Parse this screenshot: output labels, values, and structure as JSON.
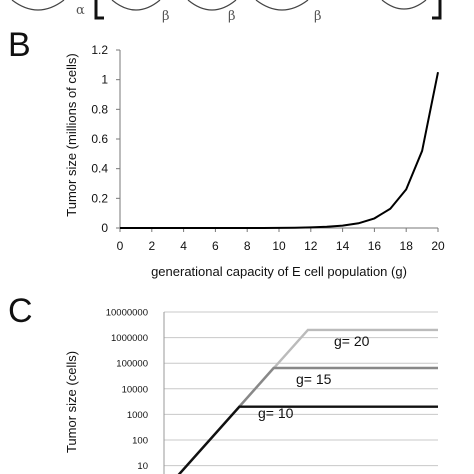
{
  "top_strip": {
    "greek_labels": [
      "α",
      "β",
      "β",
      "β"
    ]
  },
  "panels": {
    "b": {
      "letter": "B"
    },
    "c": {
      "letter": "C"
    }
  },
  "chart_data": [
    {
      "panel": "B",
      "type": "line",
      "title": "",
      "xlabel": "generational capacity of E cell population (g)",
      "ylabel": "Tumor size (millions of cells)",
      "xlim": [
        0,
        20
      ],
      "ylim": [
        0,
        1.2
      ],
      "x_ticks": [
        0,
        2,
        4,
        6,
        8,
        10,
        12,
        14,
        16,
        18,
        20
      ],
      "y_ticks": [
        "0",
        "0.2",
        "0.4",
        "0.6",
        "0.8",
        "1",
        "1.2"
      ],
      "grid": false,
      "series": [
        {
          "color": "#000000",
          "x": [
            0,
            1,
            2,
            3,
            4,
            5,
            6,
            7,
            8,
            9,
            10,
            11,
            12,
            13,
            14,
            15,
            16,
            17,
            18,
            19,
            20
          ],
          "y": [
            0,
            0,
            0,
            0,
            0,
            0,
            0,
            0,
            0,
            0,
            0.001,
            0.002,
            0.004,
            0.008,
            0.016,
            0.032,
            0.065,
            0.13,
            0.26,
            0.52,
            1.05
          ]
        }
      ]
    },
    {
      "panel": "C",
      "type": "line",
      "title": "",
      "ylabel": "Tumor size (cells)",
      "y_scale": "log",
      "ylim": [
        1,
        10000000
      ],
      "y_ticks": [
        "10000000",
        "1000000",
        "100000",
        "10000",
        "1000",
        "100",
        "10"
      ],
      "grid": true,
      "series": [
        {
          "name": "g= 20",
          "color": "#bbbbbb",
          "x": [
            0,
            21,
            40
          ],
          "y": [
            1,
            2000000,
            2000000
          ]
        },
        {
          "name": "g= 15",
          "color": "#888888",
          "x": [
            0,
            16,
            40
          ],
          "y": [
            1,
            65000,
            65000
          ]
        },
        {
          "name": "g= 10",
          "color": "#111111",
          "x": [
            0,
            11,
            40
          ],
          "y": [
            1,
            2000,
            2000
          ]
        }
      ]
    }
  ]
}
